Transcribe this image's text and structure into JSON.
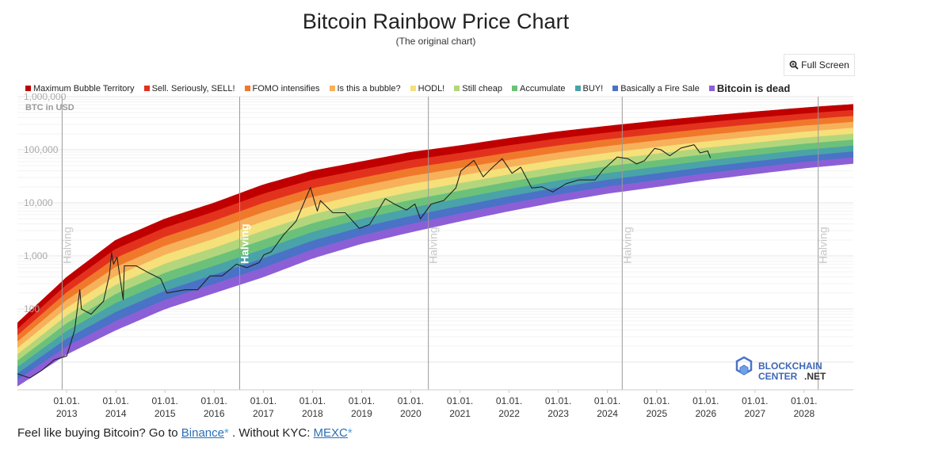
{
  "title": "Bitcoin Rainbow Price Chart",
  "subtitle": "(The original chart)",
  "full_screen_label": "Full Screen",
  "legend": [
    {
      "label": "Maximum Bubble Territory",
      "color": "#c00000",
      "bold": false
    },
    {
      "label": "Sell. Seriously, SELL!",
      "color": "#e2321e",
      "bold": false
    },
    {
      "label": "FOMO intensifies",
      "color": "#f0782b",
      "bold": false
    },
    {
      "label": "Is this a bubble?",
      "color": "#f7b15a",
      "bold": false
    },
    {
      "label": "HODL!",
      "color": "#f5e07a",
      "bold": false
    },
    {
      "label": "Still cheap",
      "color": "#b3d67c",
      "bold": false
    },
    {
      "label": "Accumulate",
      "color": "#6cc17a",
      "bold": false
    },
    {
      "label": "BUY!",
      "color": "#49a3a8",
      "bold": false
    },
    {
      "label": "Basically a Fire Sale",
      "color": "#4a72c6",
      "bold": false
    },
    {
      "label": "Bitcoin is dead",
      "color": "#8c5fd6",
      "bold": true
    }
  ],
  "footer": {
    "prefix": "Feel like buying Bitcoin? Go to ",
    "link1": "Binance",
    "star1": "*",
    "middle": " . Without KYC: ",
    "link2": "MEXC",
    "star2": "*"
  },
  "watermark": {
    "line1": "BLOCKCHAIN",
    "line2": "CENTER",
    "line3": ".NET"
  },
  "chart_data": {
    "type": "area",
    "ylabel": "BTC in USD",
    "yscale": "log",
    "ylim": [
      3,
      1000000
    ],
    "yticks": [
      {
        "value": 100,
        "label": "100"
      },
      {
        "value": 1000,
        "label": "1,000"
      },
      {
        "value": 10000,
        "label": "10,000"
      },
      {
        "value": 100000,
        "label": "100,000"
      },
      {
        "value": 1000000,
        "label": "1,000,000"
      }
    ],
    "xlim": [
      "2012-01-01",
      "2029-01-01"
    ],
    "xticks": [
      {
        "date": "2013-01-01",
        "line1": "01.01.",
        "line2": "2013"
      },
      {
        "date": "2014-01-01",
        "line1": "01.01.",
        "line2": "2014"
      },
      {
        "date": "2015-01-01",
        "line1": "01.01.",
        "line2": "2015"
      },
      {
        "date": "2016-01-01",
        "line1": "01.01.",
        "line2": "2016"
      },
      {
        "date": "2017-01-01",
        "line1": "01.01.",
        "line2": "2017"
      },
      {
        "date": "2018-01-01",
        "line1": "01.01.",
        "line2": "2018"
      },
      {
        "date": "2019-01-01",
        "line1": "01.01.",
        "line2": "2019"
      },
      {
        "date": "2020-01-01",
        "line1": "01.01.",
        "line2": "2020"
      },
      {
        "date": "2021-01-01",
        "line1": "01.01.",
        "line2": "2021"
      },
      {
        "date": "2022-01-01",
        "line1": "01.01.",
        "line2": "2022"
      },
      {
        "date": "2023-01-01",
        "line1": "01.01.",
        "line2": "2023"
      },
      {
        "date": "2024-01-01",
        "line1": "01.01.",
        "line2": "2024"
      },
      {
        "date": "2025-01-01",
        "line1": "01.01.",
        "line2": "2025"
      },
      {
        "date": "2026-01-01",
        "line1": "01.01.",
        "line2": "2026"
      },
      {
        "date": "2027-01-01",
        "line1": "01.01.",
        "line2": "2027"
      },
      {
        "date": "2028-01-01",
        "line1": "01.01.",
        "line2": "2028"
      }
    ],
    "halvings": [
      {
        "date": "2012-11-28",
        "label": "Halving",
        "highlight": false
      },
      {
        "date": "2016-07-09",
        "label": "Halving",
        "highlight": true
      },
      {
        "date": "2020-05-11",
        "label": "Halving",
        "highlight": false
      },
      {
        "date": "2024-04-20",
        "label": "Halving",
        "highlight": false
      },
      {
        "date": "2028-04-15",
        "label": "Halving",
        "highlight": false
      }
    ],
    "bands": {
      "colors": [
        "#c00000",
        "#e2321e",
        "#f0782b",
        "#f7b15a",
        "#f5e07a",
        "#b3d67c",
        "#6cc17a",
        "#49a3a8",
        "#4a72c6",
        "#8c5fd6"
      ],
      "upper_edge": [
        {
          "x": "2012-01-01",
          "y": 55
        },
        {
          "x": "2013-01-01",
          "y": 400
        },
        {
          "x": "2014-01-01",
          "y": 2000
        },
        {
          "x": "2015-01-01",
          "y": 5000
        },
        {
          "x": "2016-01-01",
          "y": 10000
        },
        {
          "x": "2017-01-01",
          "y": 22000
        },
        {
          "x": "2018-01-01",
          "y": 40000
        },
        {
          "x": "2019-01-01",
          "y": 60000
        },
        {
          "x": "2020-01-01",
          "y": 90000
        },
        {
          "x": "2021-01-01",
          "y": 120000
        },
        {
          "x": "2022-01-01",
          "y": 165000
        },
        {
          "x": "2023-01-01",
          "y": 220000
        },
        {
          "x": "2024-01-01",
          "y": 280000
        },
        {
          "x": "2025-01-01",
          "y": 350000
        },
        {
          "x": "2026-01-01",
          "y": 430000
        },
        {
          "x": "2027-01-01",
          "y": 520000
        },
        {
          "x": "2028-01-01",
          "y": 620000
        },
        {
          "x": "2029-01-01",
          "y": 720000
        }
      ],
      "lower_edge": [
        {
          "x": "2012-01-01",
          "y": 3.5
        },
        {
          "x": "2013-01-01",
          "y": 14
        },
        {
          "x": "2014-01-01",
          "y": 40
        },
        {
          "x": "2015-01-01",
          "y": 100
        },
        {
          "x": "2016-01-01",
          "y": 200
        },
        {
          "x": "2017-01-01",
          "y": 400
        },
        {
          "x": "2018-01-01",
          "y": 900
        },
        {
          "x": "2019-01-01",
          "y": 1700
        },
        {
          "x": "2020-01-01",
          "y": 2800
        },
        {
          "x": "2021-01-01",
          "y": 4500
        },
        {
          "x": "2022-01-01",
          "y": 7000
        },
        {
          "x": "2023-01-01",
          "y": 10500
        },
        {
          "x": "2024-01-01",
          "y": 15000
        },
        {
          "x": "2025-01-01",
          "y": 20000
        },
        {
          "x": "2026-01-01",
          "y": 27000
        },
        {
          "x": "2027-01-01",
          "y": 35000
        },
        {
          "x": "2028-01-01",
          "y": 45000
        },
        {
          "x": "2029-01-01",
          "y": 55000
        }
      ]
    },
    "price": [
      [
        "2012-01-01",
        6
      ],
      [
        "2012-04-01",
        5
      ],
      [
        "2012-07-01",
        7
      ],
      [
        "2012-10-01",
        11
      ],
      [
        "2013-01-01",
        13
      ],
      [
        "2013-03-01",
        40
      ],
      [
        "2013-04-08",
        230
      ],
      [
        "2013-04-20",
        100
      ],
      [
        "2013-07-01",
        80
      ],
      [
        "2013-10-01",
        140
      ],
      [
        "2013-11-15",
        450
      ],
      [
        "2013-11-30",
        1150
      ],
      [
        "2013-12-15",
        700
      ],
      [
        "2014-01-10",
        950
      ],
      [
        "2014-02-25",
        150
      ],
      [
        "2014-03-05",
        650
      ],
      [
        "2014-06-01",
        650
      ],
      [
        "2014-09-01",
        480
      ],
      [
        "2014-12-01",
        370
      ],
      [
        "2015-01-15",
        200
      ],
      [
        "2015-06-01",
        230
      ],
      [
        "2015-09-01",
        230
      ],
      [
        "2015-12-01",
        420
      ],
      [
        "2016-03-01",
        420
      ],
      [
        "2016-06-15",
        700
      ],
      [
        "2016-09-01",
        600
      ],
      [
        "2016-12-01",
        750
      ],
      [
        "2017-01-05",
        1050
      ],
      [
        "2017-03-01",
        1200
      ],
      [
        "2017-06-01",
        2500
      ],
      [
        "2017-09-01",
        4500
      ],
      [
        "2017-12-17",
        19500
      ],
      [
        "2018-02-06",
        7000
      ],
      [
        "2018-03-01",
        11000
      ],
      [
        "2018-06-01",
        6500
      ],
      [
        "2018-09-01",
        6500
      ],
      [
        "2018-12-15",
        3300
      ],
      [
        "2019-03-01",
        3900
      ],
      [
        "2019-06-26",
        12000
      ],
      [
        "2019-09-01",
        9500
      ],
      [
        "2019-12-01",
        7300
      ],
      [
        "2020-02-01",
        9500
      ],
      [
        "2020-03-13",
        5000
      ],
      [
        "2020-06-01",
        9500
      ],
      [
        "2020-09-01",
        11000
      ],
      [
        "2020-12-01",
        19000
      ],
      [
        "2021-01-08",
        40000
      ],
      [
        "2021-04-14",
        63000
      ],
      [
        "2021-06-22",
        31000
      ],
      [
        "2021-09-01",
        47000
      ],
      [
        "2021-11-10",
        68000
      ],
      [
        "2022-01-22",
        36000
      ],
      [
        "2022-03-28",
        47000
      ],
      [
        "2022-06-18",
        19000
      ],
      [
        "2022-09-01",
        20000
      ],
      [
        "2022-11-21",
        16000
      ],
      [
        "2023-03-01",
        23000
      ],
      [
        "2023-06-01",
        27000
      ],
      [
        "2023-10-01",
        27000
      ],
      [
        "2023-12-01",
        42000
      ],
      [
        "2024-03-14",
        73000
      ],
      [
        "2024-06-01",
        68000
      ],
      [
        "2024-08-05",
        54000
      ],
      [
        "2024-10-01",
        62000
      ],
      [
        "2024-12-17",
        106000
      ],
      [
        "2025-02-01",
        100000
      ],
      [
        "2025-04-08",
        77000
      ],
      [
        "2025-07-01",
        108000
      ],
      [
        "2025-10-06",
        124000
      ],
      [
        "2025-11-20",
        87000
      ],
      [
        "2026-01-15",
        95000
      ],
      [
        "2026-02-05",
        70000
      ]
    ]
  }
}
